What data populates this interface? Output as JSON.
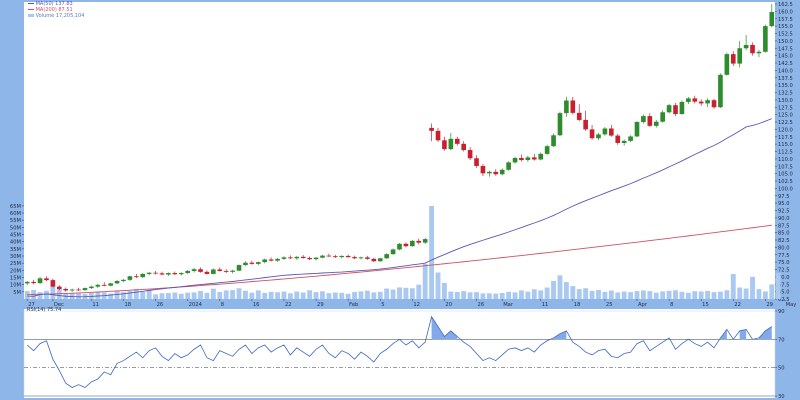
{
  "colors": {
    "frame": "#8fb6e8",
    "up": "#2e8b2e",
    "down": "#c8202f",
    "ma50": "#5b56b8",
    "ma200": "#d0525e",
    "volume": "#a9c9f0",
    "rsi": "#3c67c4",
    "rsi_fill": "#6c9ae6"
  },
  "legend": {
    "line1": "MA(50) 137.83",
    "line2": "MA(200) 87.51",
    "line3": "Volume 17,205,104"
  },
  "rsi_label": "RSI(14) 75.74",
  "chart_data": [
    {
      "type": "candlestick",
      "title": "",
      "ylim": [
        62.5,
        162.5
      ],
      "y_ticks": [
        162.5,
        160.0,
        157.5,
        155.0,
        152.5,
        150.0,
        147.5,
        145.0,
        142.5,
        140.0,
        137.5,
        135.0,
        132.5,
        130.0,
        127.5,
        125.0,
        122.5,
        120.0,
        117.5,
        115.0,
        112.5,
        110.0,
        107.5,
        105.0,
        102.5,
        100.0,
        97.5,
        95.0,
        92.5,
        90.0,
        87.5,
        85.0,
        82.5,
        80.0,
        77.5,
        75.0,
        72.5,
        70.0,
        67.5,
        65.0,
        62.5
      ],
      "y_tick_labels": [
        "162.5",
        "160.0",
        "157.5",
        "155.0",
        "152.5",
        "150.0",
        "147.5",
        "145.0",
        "142.5",
        "140.0",
        "137.5",
        "135.0",
        "132.5",
        "130.0",
        "127.5",
        "125.0",
        "122.5",
        "120.0",
        "117.5",
        "115.0",
        "112.5",
        "110.0",
        "107.5",
        "105.0",
        "102.5",
        "100.0",
        "97.5",
        "95.0",
        "92.5",
        "90.0",
        "87.5",
        "85.0",
        "82.5",
        "80.0",
        "77.5",
        "75.0",
        "72.5",
        "70.0",
        "67.5",
        "65.0",
        "62.5"
      ],
      "x_tick_labels": [
        {
          "i": 0,
          "label": "27"
        },
        {
          "i": 4,
          "label": "Dec"
        },
        {
          "i": 10,
          "label": "11"
        },
        {
          "i": 15,
          "label": "18"
        },
        {
          "i": 20,
          "label": "26"
        },
        {
          "i": 25,
          "label": "2024"
        },
        {
          "i": 30,
          "label": "8"
        },
        {
          "i": 35,
          "label": "16"
        },
        {
          "i": 40,
          "label": "22"
        },
        {
          "i": 45,
          "label": "29"
        },
        {
          "i": 50,
          "label": "Feb"
        },
        {
          "i": 55,
          "label": "5"
        },
        {
          "i": 60,
          "label": "12"
        },
        {
          "i": 65,
          "label": "20"
        },
        {
          "i": 70,
          "label": "26"
        },
        {
          "i": 74,
          "label": "Mar"
        },
        {
          "i": 80,
          "label": "11"
        },
        {
          "i": 85,
          "label": "18"
        },
        {
          "i": 90,
          "label": "25"
        },
        {
          "i": 95,
          "label": "Apr"
        },
        {
          "i": 100,
          "label": "8"
        },
        {
          "i": 105,
          "label": "15"
        },
        {
          "i": 110,
          "label": "22"
        },
        {
          "i": 115,
          "label": "29"
        },
        {
          "i": 118,
          "label": "May"
        },
        {
          "i": 126,
          "label": "13"
        },
        {
          "i": 132,
          "label": "20"
        }
      ],
      "candles": [
        [
          67.8,
          68.6,
          67.2,
          68.3
        ],
        [
          68.3,
          69.0,
          67.5,
          67.9
        ],
        [
          67.9,
          70.0,
          67.6,
          69.5
        ],
        [
          69.5,
          70.2,
          68.6,
          68.9
        ],
        [
          68.9,
          69.4,
          66.4,
          66.7
        ],
        [
          66.7,
          67.2,
          65.5,
          65.9
        ],
        [
          65.9,
          66.4,
          65.0,
          65.4
        ],
        [
          65.4,
          66.0,
          64.9,
          65.7
        ],
        [
          65.7,
          66.3,
          65.2,
          65.5
        ],
        [
          65.5,
          66.4,
          65.3,
          66.2
        ],
        [
          66.2,
          67.0,
          65.9,
          66.7
        ],
        [
          66.7,
          67.6,
          66.2,
          67.3
        ],
        [
          67.3,
          68.2,
          66.8,
          67.0
        ],
        [
          67.0,
          68.0,
          66.8,
          67.8
        ],
        [
          67.8,
          69.0,
          67.5,
          68.6
        ],
        [
          68.6,
          69.3,
          68.2,
          69.0
        ],
        [
          69.0,
          70.4,
          68.6,
          70.2
        ],
        [
          70.2,
          71.0,
          69.6,
          69.9
        ],
        [
          69.9,
          71.3,
          69.7,
          71.0
        ],
        [
          71.0,
          71.7,
          70.5,
          71.4
        ],
        [
          71.4,
          72.0,
          70.8,
          71.2
        ],
        [
          71.2,
          71.8,
          70.5,
          70.8
        ],
        [
          70.8,
          71.5,
          70.3,
          71.3
        ],
        [
          71.3,
          71.8,
          70.6,
          70.9
        ],
        [
          70.9,
          71.6,
          70.5,
          71.3
        ],
        [
          71.3,
          72.3,
          71.0,
          72.0
        ],
        [
          72.0,
          73.0,
          71.5,
          72.6
        ],
        [
          72.6,
          73.2,
          71.4,
          71.7
        ],
        [
          71.7,
          72.2,
          70.8,
          71.0
        ],
        [
          71.0,
          72.8,
          70.9,
          72.5
        ],
        [
          72.5,
          73.2,
          71.8,
          72.0
        ],
        [
          72.0,
          72.6,
          71.3,
          71.7
        ],
        [
          71.7,
          72.4,
          71.2,
          72.1
        ],
        [
          72.1,
          74.2,
          72.0,
          74.0
        ],
        [
          74.0,
          75.3,
          73.7,
          74.8
        ],
        [
          74.8,
          75.5,
          74.1,
          74.4
        ],
        [
          74.4,
          75.2,
          74.0,
          75.0
        ],
        [
          75.0,
          76.2,
          74.6,
          75.9
        ],
        [
          75.9,
          76.6,
          75.2,
          75.5
        ],
        [
          75.5,
          76.4,
          75.1,
          76.1
        ],
        [
          76.1,
          77.0,
          75.7,
          76.6
        ],
        [
          76.6,
          77.3,
          76.0,
          76.3
        ],
        [
          76.3,
          77.0,
          75.8,
          76.8
        ],
        [
          76.8,
          77.4,
          76.2,
          76.4
        ],
        [
          76.4,
          76.9,
          75.7,
          76.0
        ],
        [
          76.0,
          76.8,
          75.6,
          76.5
        ],
        [
          76.5,
          77.5,
          76.3,
          77.2
        ],
        [
          77.2,
          77.9,
          76.8,
          77.0
        ],
        [
          77.0,
          77.5,
          76.4,
          76.7
        ],
        [
          76.7,
          77.3,
          76.3,
          77.1
        ],
        [
          77.1,
          77.6,
          76.5,
          76.7
        ],
        [
          76.7,
          77.2,
          76.0,
          76.3
        ],
        [
          76.3,
          76.9,
          75.9,
          76.6
        ],
        [
          76.6,
          77.1,
          75.8,
          76.1
        ],
        [
          76.1,
          76.5,
          75.0,
          75.3
        ],
        [
          75.3,
          76.5,
          75.1,
          76.3
        ],
        [
          76.3,
          78.0,
          76.1,
          77.7
        ],
        [
          77.7,
          79.6,
          77.5,
          79.3
        ],
        [
          79.3,
          81.5,
          79.0,
          81.2
        ],
        [
          81.2,
          81.7,
          80.0,
          80.4
        ],
        [
          80.4,
          82.5,
          80.2,
          82.2
        ],
        [
          82.2,
          83.0,
          81.0,
          81.6
        ],
        [
          81.6,
          83.2,
          81.2,
          82.8
        ],
        [
          120.5,
          122.0,
          116.0,
          119.5
        ],
        [
          119.5,
          120.5,
          115.8,
          116.3
        ],
        [
          116.3,
          117.5,
          112.8,
          113.3
        ],
        [
          113.3,
          118.8,
          112.9,
          116.8
        ],
        [
          116.8,
          117.5,
          114.5,
          115.1
        ],
        [
          115.1,
          116.0,
          112.5,
          113.0
        ],
        [
          113.0,
          114.0,
          109.6,
          110.2
        ],
        [
          110.2,
          111.2,
          107.0,
          107.6
        ],
        [
          107.6,
          108.3,
          104.2,
          105.1
        ],
        [
          105.1,
          106.0,
          104.0,
          105.6
        ],
        [
          105.6,
          106.5,
          104.3,
          104.8
        ],
        [
          104.8,
          106.8,
          104.4,
          106.3
        ],
        [
          106.3,
          109.2,
          106.0,
          108.8
        ],
        [
          108.8,
          110.8,
          108.4,
          110.3
        ],
        [
          110.3,
          111.5,
          109.1,
          109.6
        ],
        [
          109.6,
          111.0,
          109.0,
          110.5
        ],
        [
          110.5,
          111.7,
          109.4,
          109.8
        ],
        [
          109.8,
          112.2,
          109.5,
          111.7
        ],
        [
          111.7,
          114.8,
          111.4,
          114.3
        ],
        [
          114.3,
          118.6,
          114.0,
          118.0
        ],
        [
          118.0,
          126.0,
          117.7,
          125.5
        ],
        [
          125.5,
          131.0,
          124.3,
          129.8
        ],
        [
          129.8,
          131.0,
          125.0,
          125.6
        ],
        [
          125.6,
          128.5,
          122.8,
          123.2
        ],
        [
          123.2,
          126.3,
          119.5,
          120.0
        ],
        [
          120.0,
          121.5,
          116.5,
          117.0
        ],
        [
          117.0,
          118.8,
          116.3,
          118.3
        ],
        [
          118.3,
          120.8,
          117.9,
          120.3
        ],
        [
          120.3,
          121.5,
          117.5,
          117.9
        ],
        [
          117.9,
          118.5,
          114.8,
          115.4
        ],
        [
          115.4,
          116.6,
          114.5,
          116.1
        ],
        [
          116.1,
          118.0,
          115.7,
          117.6
        ],
        [
          117.6,
          122.8,
          117.4,
          122.5
        ],
        [
          122.5,
          125.0,
          122.0,
          124.5
        ],
        [
          124.5,
          125.5,
          120.8,
          121.2
        ],
        [
          121.2,
          123.2,
          120.6,
          122.6
        ],
        [
          122.6,
          126.5,
          122.3,
          125.8
        ],
        [
          125.8,
          128.7,
          125.4,
          128.2
        ],
        [
          128.2,
          129.0,
          124.5,
          125.2
        ],
        [
          125.2,
          129.8,
          125.0,
          129.3
        ],
        [
          129.3,
          131.0,
          128.6,
          130.5
        ],
        [
          130.5,
          131.4,
          128.8,
          129.4
        ],
        [
          129.4,
          130.2,
          128.0,
          128.8
        ],
        [
          128.8,
          130.5,
          127.6,
          129.9
        ],
        [
          129.9,
          130.4,
          127.0,
          127.5
        ],
        [
          127.5,
          139.0,
          127.2,
          138.5
        ],
        [
          138.5,
          146.0,
          138.2,
          145.5
        ],
        [
          145.5,
          146.5,
          141.5,
          142.3
        ],
        [
          142.3,
          150.0,
          141.0,
          147.5
        ],
        [
          147.5,
          152.0,
          146.8,
          148.6
        ],
        [
          148.6,
          149.5,
          145.0,
          145.8
        ],
        [
          145.8,
          147.0,
          144.5,
          146.3
        ],
        [
          146.3,
          155.5,
          146.0,
          155.0
        ],
        [
          155.0,
          162.5,
          154.6,
          159.8
        ]
      ]
    },
    {
      "type": "bar",
      "title": "Volume",
      "y_ticks": [
        5,
        10,
        15,
        20,
        25,
        30,
        35,
        40,
        45,
        50,
        55,
        60,
        65
      ],
      "y_tick_labels": [
        "5M",
        "10M",
        "15M",
        "20M",
        "25M",
        "30M",
        "35M",
        "40M",
        "45M",
        "50M",
        "55M",
        "60M",
        "65M"
      ],
      "values": [
        5.5,
        6.3,
        4.8,
        5.8,
        10.0,
        7.2,
        4.2,
        3.8,
        4.0,
        3.6,
        4.3,
        5.2,
        4.7,
        3.8,
        6.0,
        4.8,
        5.5,
        7.1,
        4.9,
        6.4,
        3.3,
        4.0,
        4.2,
        4.5,
        3.6,
        4.4,
        4.6,
        5.6,
        4.3,
        7.2,
        4.9,
        6.0,
        6.2,
        7.5,
        5.8,
        4.4,
        6.0,
        4.3,
        5.0,
        4.7,
        5.2,
        4.0,
        5.2,
        4.5,
        6.1,
        4.8,
        5.4,
        4.1,
        4.5,
        4.3,
        3.6,
        4.9,
        5.3,
        5.8,
        4.6,
        5.0,
        7.3,
        6.6,
        8.1,
        7.8,
        7.5,
        10.0,
        24.6,
        64.9,
        18.5,
        11.2,
        5.2,
        4.9,
        5.5,
        4.7,
        4.8,
        3.9,
        4.0,
        3.8,
        4.2,
        5.0,
        4.6,
        6.0,
        5.1,
        6.8,
        6.0,
        8.0,
        12.6,
        16.5,
        11.8,
        9.0,
        6.9,
        7.5,
        5.7,
        6.3,
        5.0,
        5.9,
        4.6,
        5.2,
        4.8,
        5.5,
        6.0,
        5.5,
        4.4,
        5.3,
        5.7,
        6.1,
        5.0,
        4.3,
        5.4,
        5.2,
        5.6,
        4.8,
        5.1,
        6.1,
        17.4,
        8.0,
        7.3,
        15.5,
        6.9,
        5.3,
        10.2,
        18.2
      ]
    },
    {
      "type": "line",
      "title": "RSI(14)",
      "ylim": [
        30,
        90
      ],
      "y_ticks": [
        30,
        50,
        70,
        90
      ],
      "y_tick_labels": [
        "30",
        "50",
        "70",
        "90"
      ],
      "reference_lines": [
        30,
        50,
        70
      ],
      "values": [
        66,
        62,
        67,
        69,
        56,
        48,
        39,
        36,
        38,
        36,
        40,
        42,
        47,
        45,
        53,
        55,
        58,
        61,
        57,
        62,
        64,
        58,
        55,
        60,
        57,
        59,
        63,
        66,
        57,
        55,
        62,
        60,
        58,
        63,
        66,
        60,
        64,
        66,
        61,
        64,
        66,
        59,
        64,
        61,
        58,
        63,
        66,
        60,
        57,
        62,
        60,
        56,
        61,
        58,
        54,
        60,
        63,
        67,
        70,
        66,
        69,
        64,
        68,
        86,
        79,
        72,
        76,
        72,
        68,
        65,
        60,
        55,
        57,
        55,
        59,
        63,
        64,
        62,
        64,
        61,
        66,
        69,
        71,
        74,
        76,
        68,
        65,
        61,
        59,
        62,
        63,
        58,
        57,
        60,
        61,
        67,
        69,
        62,
        65,
        68,
        71,
        63,
        67,
        70,
        67,
        65,
        68,
        64,
        71,
        77,
        70,
        76,
        77,
        70,
        71,
        76,
        79
      ]
    }
  ]
}
